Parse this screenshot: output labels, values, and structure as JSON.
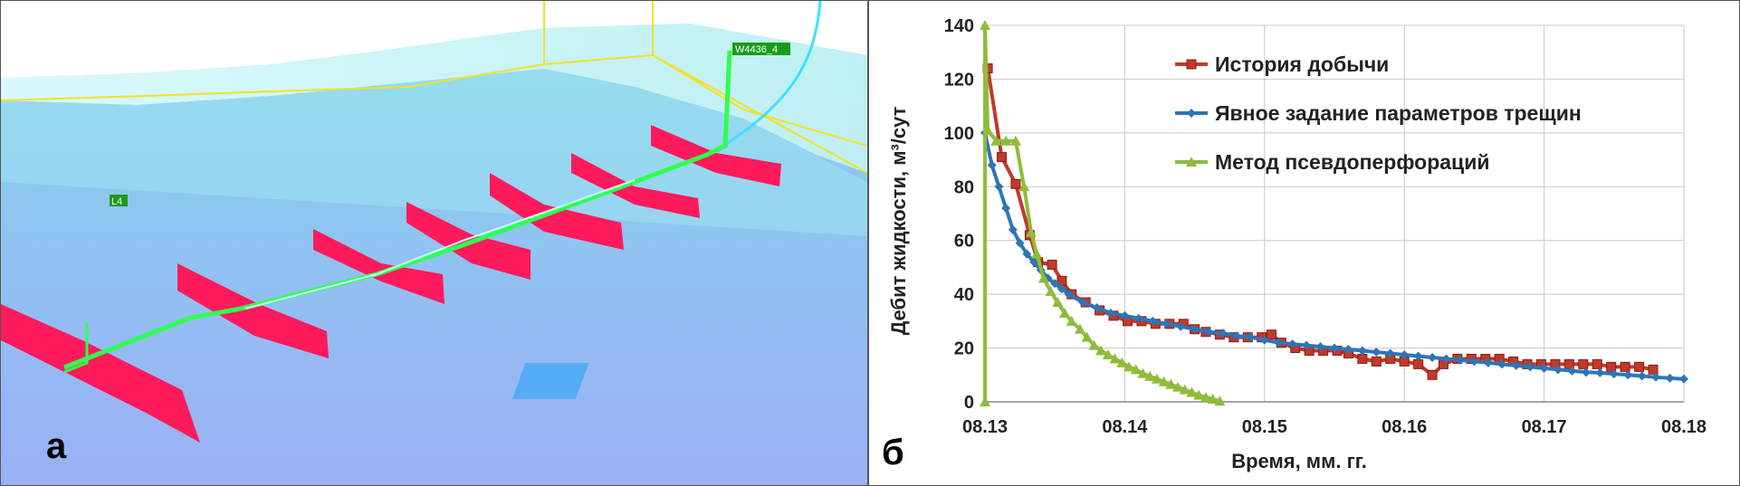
{
  "panel_a": {
    "letter": "а",
    "well_label": "W4436_4",
    "lateral_label": "L4"
  },
  "panel_b": {
    "letter": "б"
  },
  "chart_data": {
    "type": "line",
    "xlabel": "Время, мм. гг.",
    "ylabel": "Дебит жидкости, м³/сут",
    "x_tick_labels": [
      "08.13",
      "08.14",
      "08.15",
      "08.16",
      "08.17",
      "08.18"
    ],
    "y_ticks": [
      0,
      20,
      40,
      60,
      80,
      100,
      120,
      140
    ],
    "xlim": [
      0,
      5
    ],
    "ylim": [
      0,
      140
    ],
    "x_unit_note": "x values measured in months from 08.13",
    "grid": true,
    "legend_position": "top-right",
    "series": [
      {
        "name": "История добычи",
        "color": "#c0392b",
        "marker": "square",
        "points": [
          [
            0.02,
            124
          ],
          [
            0.12,
            91
          ],
          [
            0.22,
            81
          ],
          [
            0.32,
            62
          ],
          [
            0.38,
            52
          ],
          [
            0.48,
            51
          ],
          [
            0.55,
            45
          ],
          [
            0.62,
            40
          ],
          [
            0.72,
            37
          ],
          [
            0.82,
            34
          ],
          [
            0.92,
            32
          ],
          [
            1.02,
            30
          ],
          [
            1.12,
            30
          ],
          [
            1.22,
            29
          ],
          [
            1.32,
            29
          ],
          [
            1.42,
            29
          ],
          [
            1.5,
            27
          ],
          [
            1.58,
            26
          ],
          [
            1.68,
            25
          ],
          [
            1.78,
            24
          ],
          [
            1.88,
            24
          ],
          [
            1.98,
            24
          ],
          [
            2.05,
            25
          ],
          [
            2.12,
            22
          ],
          [
            2.22,
            20
          ],
          [
            2.32,
            19
          ],
          [
            2.42,
            19
          ],
          [
            2.52,
            19
          ],
          [
            2.6,
            18
          ],
          [
            2.7,
            16
          ],
          [
            2.8,
            15
          ],
          [
            2.9,
            16
          ],
          [
            3.0,
            15
          ],
          [
            3.1,
            14
          ],
          [
            3.2,
            10
          ],
          [
            3.28,
            14
          ],
          [
            3.38,
            16
          ],
          [
            3.48,
            16
          ],
          [
            3.58,
            16
          ],
          [
            3.68,
            16
          ],
          [
            3.78,
            15
          ],
          [
            3.88,
            14
          ],
          [
            3.98,
            14
          ],
          [
            4.08,
            14
          ],
          [
            4.18,
            14
          ],
          [
            4.28,
            14
          ],
          [
            4.38,
            14
          ],
          [
            4.48,
            13
          ],
          [
            4.58,
            13
          ],
          [
            4.68,
            13
          ],
          [
            4.78,
            12
          ]
        ]
      },
      {
        "name": "Явное задание параметров трещин",
        "color": "#2e75b6",
        "marker": "diamond",
        "points": [
          [
            0.0,
            100
          ],
          [
            0.05,
            88
          ],
          [
            0.1,
            80
          ],
          [
            0.15,
            72
          ],
          [
            0.2,
            64
          ],
          [
            0.25,
            59
          ],
          [
            0.3,
            55
          ],
          [
            0.35,
            52
          ],
          [
            0.4,
            49
          ],
          [
            0.45,
            46
          ],
          [
            0.5,
            44
          ],
          [
            0.55,
            42
          ],
          [
            0.6,
            40
          ],
          [
            0.7,
            37
          ],
          [
            0.8,
            35
          ],
          [
            0.9,
            33
          ],
          [
            1.0,
            32
          ],
          [
            1.1,
            31
          ],
          [
            1.2,
            30
          ],
          [
            1.3,
            29
          ],
          [
            1.4,
            28
          ],
          [
            1.5,
            27
          ],
          [
            1.6,
            26
          ],
          [
            1.7,
            25.5
          ],
          [
            1.8,
            24.5
          ],
          [
            1.9,
            24
          ],
          [
            2.0,
            23
          ],
          [
            2.1,
            22
          ],
          [
            2.2,
            21.5
          ],
          [
            2.3,
            21
          ],
          [
            2.4,
            20.5
          ],
          [
            2.5,
            20
          ],
          [
            2.6,
            19.5
          ],
          [
            2.7,
            19
          ],
          [
            2.8,
            18.5
          ],
          [
            2.9,
            18
          ],
          [
            3.0,
            17.5
          ],
          [
            3.1,
            17
          ],
          [
            3.2,
            16.5
          ],
          [
            3.3,
            16
          ],
          [
            3.4,
            15.5
          ],
          [
            3.5,
            15
          ],
          [
            3.6,
            14.5
          ],
          [
            3.7,
            14
          ],
          [
            3.8,
            13.5
          ],
          [
            3.9,
            13
          ],
          [
            4.0,
            12.5
          ],
          [
            4.1,
            12
          ],
          [
            4.2,
            11.5
          ],
          [
            4.3,
            11
          ],
          [
            4.4,
            10.8
          ],
          [
            4.5,
            10.4
          ],
          [
            4.6,
            10
          ],
          [
            4.7,
            9.6
          ],
          [
            4.8,
            9.2
          ],
          [
            4.9,
            8.8
          ],
          [
            5.0,
            8.5
          ]
        ]
      },
      {
        "name": "Метод псевдоперфораций",
        "color": "#8fbc3b",
        "marker": "triangle",
        "points": [
          [
            0.0,
            0
          ],
          [
            0.0,
            140
          ],
          [
            0.02,
            101
          ],
          [
            0.08,
            97
          ],
          [
            0.15,
            97
          ],
          [
            0.22,
            97
          ],
          [
            0.28,
            80
          ],
          [
            0.33,
            63
          ],
          [
            0.37,
            55
          ],
          [
            0.42,
            46
          ],
          [
            0.47,
            41
          ],
          [
            0.52,
            37
          ],
          [
            0.57,
            33
          ],
          [
            0.62,
            30
          ],
          [
            0.68,
            27
          ],
          [
            0.73,
            24
          ],
          [
            0.78,
            21
          ],
          [
            0.83,
            19
          ],
          [
            0.88,
            17.5
          ],
          [
            0.93,
            16
          ],
          [
            0.98,
            14.5
          ],
          [
            1.03,
            13
          ],
          [
            1.08,
            12
          ],
          [
            1.13,
            10.5
          ],
          [
            1.18,
            9.5
          ],
          [
            1.23,
            8.5
          ],
          [
            1.28,
            7.5
          ],
          [
            1.33,
            6.5
          ],
          [
            1.38,
            5.5
          ],
          [
            1.43,
            4.5
          ],
          [
            1.48,
            3.5
          ],
          [
            1.53,
            2.5
          ],
          [
            1.58,
            1.7
          ],
          [
            1.63,
            1
          ],
          [
            1.68,
            0.3
          ]
        ]
      }
    ]
  }
}
